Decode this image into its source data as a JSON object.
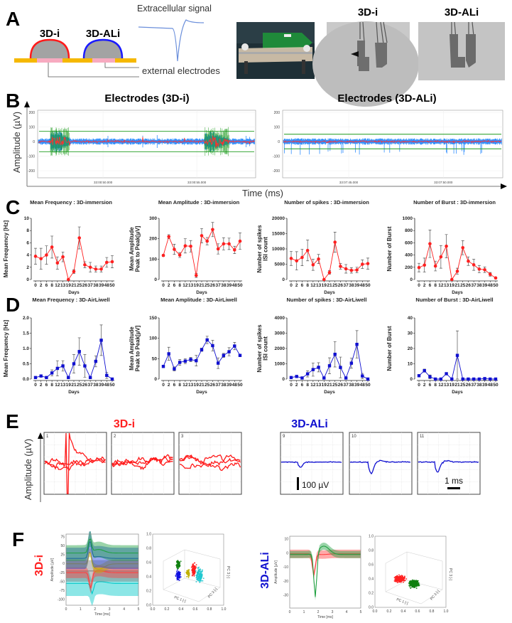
{
  "panel_labels": {
    "a": "A",
    "b": "B",
    "c": "C",
    "d": "D",
    "e": "E",
    "f": "F"
  },
  "panel_a": {
    "label_3di": "3D-i",
    "label_3dali": "3D-ALi",
    "signal_label": "Extracellular signal",
    "electrodes_label": "external electrodes",
    "photo_label_3di": "3D-i",
    "photo_label_3dali": "3D-ALi"
  },
  "panel_b": {
    "title_left": "Electrodes (3D-i)",
    "title_right": "Electrodes (3D-ALi)",
    "ylabel": "Amplitude (µV)",
    "xlabel": "Time (ms)",
    "yticks": [
      "200",
      "100",
      "0",
      "-100",
      "-200"
    ],
    "xticks_left": [
      "33:00:50.000",
      "33:00:55.000"
    ],
    "xticks_right": [
      "33:07:45.000",
      "33:07:50.000"
    ]
  },
  "panel_e": {
    "title_left": "3D-i",
    "title_right": "3D-ALi",
    "ylabel": "Amplitude (µV)",
    "boxes_left": [
      "1",
      "2",
      "3"
    ],
    "boxes_right": [
      "9",
      "10",
      "11"
    ],
    "scale_amp": "100 µV",
    "scale_time": "1 ms"
  },
  "panel_f": {
    "label_left": "3D-i",
    "label_right": "3D-ALi",
    "time_label": "Time [ms]",
    "amp_label": "Amplitude [µV]",
    "pc1": "PC 1 [-]",
    "pc2": "PC 2 [-]",
    "pc3": "PC 3 [-]",
    "left_yticks": [
      "75",
      "50",
      "25",
      "0",
      "-25",
      "-50",
      "-75",
      "-100"
    ],
    "right_yticks": [
      "10",
      "0",
      "-10",
      "-20",
      "-30"
    ],
    "time_ticks": [
      "0",
      "1",
      "2",
      "3",
      "4",
      "5"
    ],
    "scatter_ticks": [
      "0.0",
      "0.2",
      "0.4",
      "0.6",
      "0.8",
      "1.0"
    ]
  },
  "colors": {
    "immersion": "#ff2020",
    "airliwell": "#1010d0",
    "trace_blue": "#3390ff",
    "threshold_green": "#1a9a1a",
    "error_bar": "#555555"
  },
  "chart_data": [
    {
      "type": "line",
      "group": "immersion",
      "title": "Mean Frequency : 3D-immersion",
      "xlabel": "Days",
      "ylabel": [
        "Mean Frequency [Hz]"
      ],
      "categories": [
        "0",
        "2",
        "6",
        "8",
        "12",
        "13",
        "19",
        "21",
        "25",
        "26",
        "37",
        "38",
        "39",
        "48",
        "50"
      ],
      "values": [
        3.8,
        3.4,
        4.0,
        5.3,
        2.7,
        3.7,
        0,
        1.3,
        6.8,
        2.4,
        2.0,
        1.7,
        1.7,
        2.8,
        2.9
      ],
      "errors": [
        1.3,
        1.7,
        1.5,
        1.8,
        1.0,
        0.8,
        0,
        0.3,
        1.8,
        0.5,
        0.8,
        0.5,
        0.5,
        0.8,
        1.0
      ],
      "ylim": [
        0,
        10
      ],
      "yticks": [
        "0",
        "2",
        "4",
        "6",
        "8",
        "10"
      ]
    },
    {
      "type": "line",
      "group": "immersion",
      "title": "Mean Amplitude : 3D-immersion",
      "xlabel": "Days",
      "ylabel": [
        "Mean Amplitude",
        "Peak to Peak[µV]"
      ],
      "categories": [
        "0",
        "2",
        "6",
        "8",
        "12",
        "13",
        "19",
        "21",
        "25",
        "26",
        "37",
        "38",
        "39",
        "48",
        "50"
      ],
      "values": [
        118,
        210,
        148,
        120,
        165,
        163,
        20,
        215,
        188,
        245,
        150,
        175,
        175,
        145,
        188
      ],
      "errors": [
        5,
        10,
        25,
        12,
        35,
        28,
        10,
        35,
        18,
        35,
        25,
        30,
        28,
        18,
        40
      ],
      "ylim": [
        0,
        300
      ],
      "yticks": [
        "0",
        "100",
        "200",
        "300"
      ]
    },
    {
      "type": "line",
      "group": "immersion",
      "title": "Number of spikes : 3D-immersion",
      "xlabel": "Days",
      "ylabel": [
        "Number of spikes",
        "ISI count"
      ],
      "categories": [
        "0",
        "2",
        "6",
        "8",
        "12",
        "13",
        "19",
        "21",
        "25",
        "26",
        "37",
        "38",
        "39",
        "48",
        "50"
      ],
      "values": [
        6900,
        6100,
        7200,
        9500,
        4800,
        6700,
        0,
        2300,
        12200,
        4300,
        3500,
        3000,
        3100,
        5000,
        5200
      ],
      "errors": [
        2300,
        3000,
        2700,
        3400,
        1800,
        1500,
        0,
        600,
        3300,
        900,
        1400,
        900,
        900,
        1400,
        1800
      ],
      "ylim": [
        0,
        20000
      ],
      "yticks": [
        "0",
        "5000",
        "10000",
        "15000",
        "20000"
      ]
    },
    {
      "type": "line",
      "group": "immersion",
      "title": "Number of Burst : 3D-immersion",
      "xlabel": "Days",
      "ylabel": [
        "Number of Burst"
      ],
      "categories": [
        "0",
        "2",
        "6",
        "8",
        "12",
        "13",
        "19",
        "21",
        "25",
        "26",
        "37",
        "38",
        "39",
        "48",
        "50"
      ],
      "values": [
        195,
        235,
        585,
        220,
        370,
        545,
        0,
        135,
        520,
        300,
        240,
        170,
        160,
        85,
        25
      ],
      "errors": [
        70,
        115,
        225,
        80,
        185,
        190,
        0,
        50,
        115,
        70,
        90,
        60,
        45,
        30,
        15
      ],
      "ylim": [
        0,
        1000
      ],
      "yticks": [
        "0",
        "200",
        "400",
        "600",
        "800",
        "1000"
      ]
    },
    {
      "type": "line",
      "group": "airliwell",
      "title": "Mean Frequency : 3D-AirLiwell",
      "xlabel": "Days",
      "ylabel": [
        "Mean Frequency [Hz]"
      ],
      "categories": [
        "0",
        "2",
        "6",
        "8",
        "12",
        "13",
        "19",
        "21",
        "25",
        "26",
        "37",
        "38",
        "39",
        "48",
        "50"
      ],
      "values": [
        0.05,
        0.1,
        0.05,
        0.2,
        0.35,
        0.43,
        0.05,
        0.5,
        0.9,
        0.43,
        0.05,
        0.58,
        1.27,
        0.12,
        0.0
      ],
      "errors": [
        0.02,
        0.02,
        0.02,
        0.1,
        0.25,
        0.17,
        0,
        0.3,
        0.45,
        0.37,
        0,
        0.18,
        0.5,
        0.1,
        0
      ],
      "ylim": [
        0,
        2
      ],
      "yticks": [
        "0.0",
        "0.5",
        "1.0",
        "1.5",
        "2.0"
      ]
    },
    {
      "type": "line",
      "group": "airliwell",
      "title": "Mean Amplitude : 3D-AirLiwell",
      "xlabel": "Days",
      "ylabel": [
        "Mean Amplitude",
        "Peak to Peak[µV]"
      ],
      "categories": [
        "0",
        "2",
        "6",
        "8",
        "12",
        "13",
        "19",
        "21",
        "25",
        "26",
        "37",
        "38",
        "39",
        "48",
        "50"
      ],
      "values": [
        31,
        62,
        25,
        41,
        44,
        48,
        45,
        72,
        96,
        82,
        39,
        58,
        67,
        81,
        58
      ],
      "errors": [
        3,
        16,
        5,
        7,
        6,
        5,
        13,
        4,
        9,
        13,
        13,
        5,
        10,
        9,
        3
      ],
      "ylim": [
        0,
        150
      ],
      "yticks": [
        "0",
        "50",
        "100",
        "150"
      ]
    },
    {
      "type": "line",
      "group": "airliwell",
      "title": "Number of spikes : 3D-AirLiwell",
      "xlabel": "Days",
      "ylabel": [
        "Number of spikes",
        "ISI count"
      ],
      "categories": [
        "0",
        "2",
        "6",
        "8",
        "12",
        "13",
        "19",
        "21",
        "25",
        "26",
        "37",
        "38",
        "39",
        "48",
        "50"
      ],
      "values": [
        100,
        170,
        70,
        340,
        620,
        770,
        70,
        870,
        1620,
        760,
        70,
        1040,
        2270,
        200,
        0
      ],
      "errors": [
        30,
        30,
        20,
        200,
        430,
        300,
        20,
        520,
        830,
        680,
        20,
        330,
        900,
        170,
        0
      ],
      "ylim": [
        0,
        4000
      ],
      "yticks": [
        "0",
        "1000",
        "2000",
        "3000",
        "4000"
      ]
    },
    {
      "type": "line",
      "group": "airliwell",
      "title": "Number of Burst : 3D-AirLiwell",
      "xlabel": "Days",
      "ylabel": [
        "Number of Burst"
      ],
      "categories": [
        "0",
        "2",
        "6",
        "8",
        "12",
        "13",
        "19",
        "21",
        "25",
        "26",
        "37",
        "38",
        "39",
        "48",
        "50"
      ],
      "values": [
        2.2,
        5.5,
        1.5,
        0,
        0,
        3.5,
        0,
        15.5,
        0,
        0,
        0,
        0,
        0.3,
        0,
        0
      ],
      "errors": [
        0.5,
        1,
        1.2,
        0,
        0,
        0.5,
        0,
        16,
        0,
        0,
        0,
        0,
        0.3,
        0,
        0
      ],
      "ylim": [
        0,
        40
      ],
      "yticks": [
        "0",
        "10",
        "20",
        "30",
        "40"
      ]
    }
  ]
}
